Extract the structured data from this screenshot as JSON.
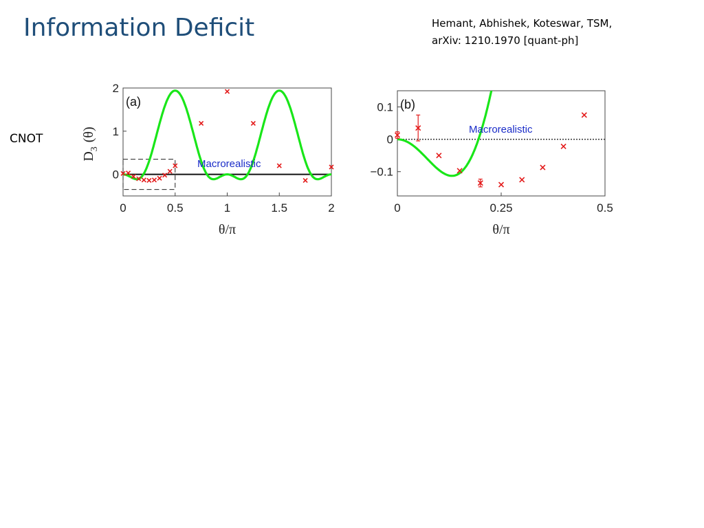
{
  "slide": {
    "title": "Information Deficit",
    "citation_line1": "Hemant, Abhishek, Koteswar, TSM,",
    "citation_line2": "arXiv: 1210.1970 [quant-ph]",
    "side_label": "CNOT"
  },
  "colors": {
    "title": "#1f4e79",
    "theory_curve": "#19e619",
    "data_points": "#e31a1a",
    "region_text": "#1a2cc8"
  },
  "chart_data": [
    {
      "id": "a",
      "type": "line",
      "panel_label": "(a)",
      "xlabel": "θ/π",
      "ylabel_main": "D",
      "ylabel_sub": "3",
      "ylabel_arg": "(θ)",
      "xlim": [
        0,
        2
      ],
      "ylim": [
        -0.5,
        2
      ],
      "xticks": [
        0,
        0.5,
        1,
        1.5,
        2
      ],
      "xtick_labels": [
        "0",
        "0.5",
        "1",
        "1.5",
        "2"
      ],
      "yticks": [
        0,
        1,
        2
      ],
      "ytick_labels": [
        "0",
        "1",
        "2"
      ],
      "annotation": "Macrorealistic",
      "reference_line": 0,
      "reference_style": "solid",
      "inset_box": {
        "x": [
          0,
          0.5
        ],
        "y": [
          -0.35,
          0.35
        ]
      },
      "theory": {
        "formula": "D3 = sin^2(2πθ)·(2·cos(πθ))^2/4 style Leggett–Garg curve",
        "x_max": 2
      },
      "points": [
        {
          "x": 0.0,
          "y": 0.02
        },
        {
          "x": 0.05,
          "y": 0.03
        },
        {
          "x": 0.1,
          "y": -0.05
        },
        {
          "x": 0.15,
          "y": -0.1
        },
        {
          "x": 0.2,
          "y": -0.13
        },
        {
          "x": 0.25,
          "y": -0.14
        },
        {
          "x": 0.3,
          "y": -0.13
        },
        {
          "x": 0.35,
          "y": -0.09
        },
        {
          "x": 0.4,
          "y": -0.02
        },
        {
          "x": 0.45,
          "y": 0.07
        },
        {
          "x": 0.5,
          "y": 0.2
        },
        {
          "x": 0.75,
          "y": 1.18
        },
        {
          "x": 1.0,
          "y": 1.92
        },
        {
          "x": 1.25,
          "y": 1.18
        },
        {
          "x": 1.5,
          "y": 0.2
        },
        {
          "x": 1.75,
          "y": -0.14
        },
        {
          "x": 2.0,
          "y": 0.17
        }
      ]
    },
    {
      "id": "b",
      "type": "line",
      "panel_label": "(b)",
      "xlabel": "θ/π",
      "xlim": [
        0,
        0.5
      ],
      "ylim": [
        -0.175,
        0.15
      ],
      "xticks": [
        0,
        0.25,
        0.5
      ],
      "xtick_labels": [
        "0",
        "0.25",
        "0.5"
      ],
      "yticks": [
        0.1,
        0,
        -0.1
      ],
      "ytick_labels": [
        "0.1",
        "0",
        "−0.1"
      ],
      "annotation": "Macrorealistic",
      "reference_line": 0,
      "reference_style": "dotted",
      "points": [
        {
          "x": 0.0,
          "y": 0.013,
          "err": 0.01
        },
        {
          "x": 0.05,
          "y": 0.035,
          "err": 0.04
        },
        {
          "x": 0.1,
          "y": -0.05
        },
        {
          "x": 0.15,
          "y": -0.097
        },
        {
          "x": 0.2,
          "y": -0.135,
          "err": 0.012
        },
        {
          "x": 0.25,
          "y": -0.14
        },
        {
          "x": 0.3,
          "y": -0.125
        },
        {
          "x": 0.35,
          "y": -0.087
        },
        {
          "x": 0.4,
          "y": -0.022
        },
        {
          "x": 0.45,
          "y": 0.075
        }
      ]
    }
  ]
}
